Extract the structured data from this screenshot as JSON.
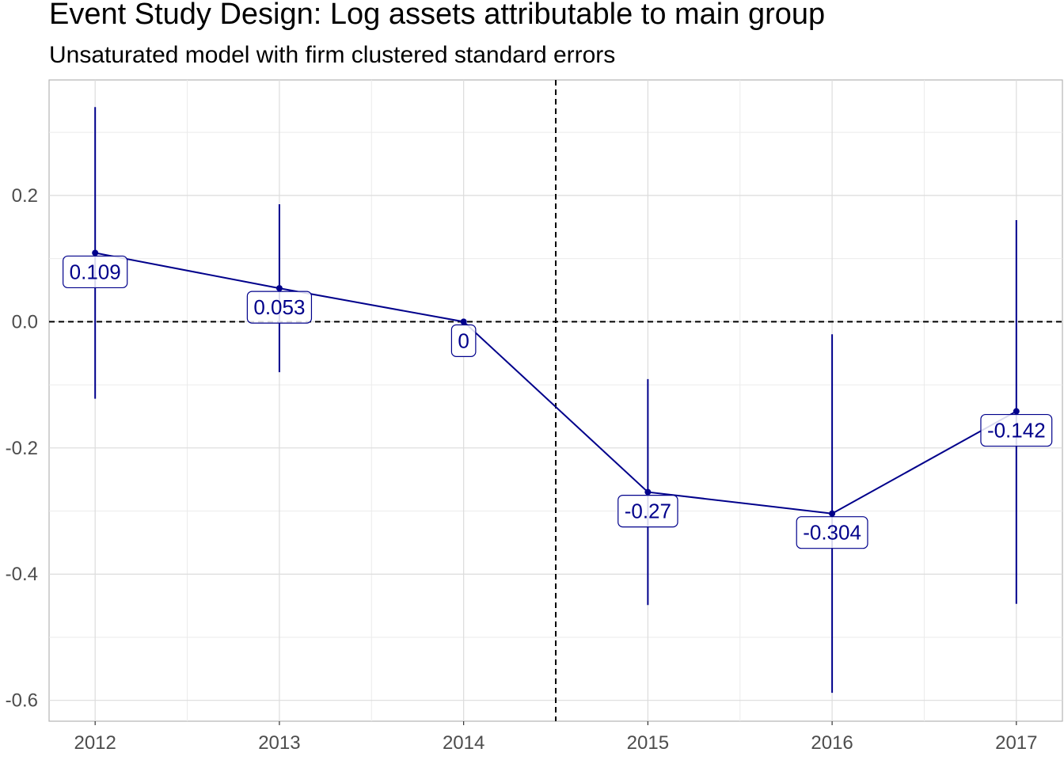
{
  "chart_data": {
    "type": "line",
    "title": "Event Study Design: Log assets attributable to main group",
    "subtitle": "Unsaturated model with firm clustered standard errors",
    "xlabel": "",
    "ylabel": "",
    "x": [
      2012,
      2013,
      2014,
      2015,
      2016,
      2017
    ],
    "xticks": [
      "2012",
      "2013",
      "2014",
      "2015",
      "2016",
      "2017"
    ],
    "xlim": [
      2011.75,
      2017.25
    ],
    "ylim": [
      -0.633,
      0.383
    ],
    "yticks": [
      0.2,
      0.0,
      -0.2,
      -0.4,
      -0.6
    ],
    "ytick_labels": [
      "0.2",
      "0.0",
      "-0.2",
      "-0.4",
      "-0.6"
    ],
    "series": [
      {
        "values": [
          0.109,
          0.053,
          0.0,
          -0.27,
          -0.304,
          -0.142
        ],
        "ci_low": [
          -0.122,
          -0.08,
          0.0,
          -0.449,
          -0.588,
          -0.447
        ],
        "ci_high": [
          0.34,
          0.186,
          0.0,
          -0.091,
          -0.02,
          0.161
        ],
        "labels": [
          "0.109",
          "0.053",
          "0",
          "-0.27",
          "-0.304",
          "-0.142"
        ],
        "color": "#00008b"
      }
    ],
    "reference_lines": {
      "horizontal_y": 0,
      "vertical_x": 2014.5,
      "style": "dashed",
      "color": "#000000"
    },
    "grid": true,
    "legend": "none"
  }
}
